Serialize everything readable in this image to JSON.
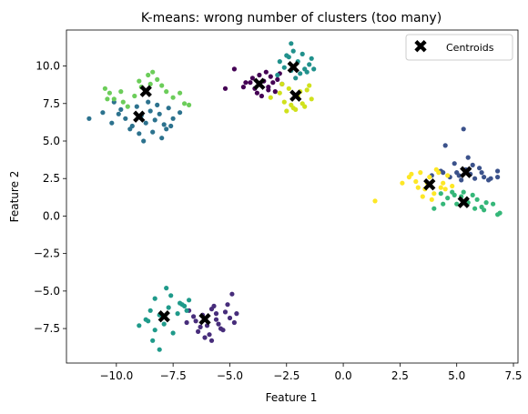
{
  "chart_data": {
    "type": "scatter",
    "title": "K-means: wrong number of clusters (too many)",
    "xlabel": "Feature 1",
    "ylabel": "Feature 2",
    "xlim": [
      -12.2,
      7.7
    ],
    "ylim": [
      -9.8,
      12.4
    ],
    "grid": false,
    "legend_placement": "upper-right",
    "x_ticks": [
      {
        "value": -10.0,
        "label": "−10.0"
      },
      {
        "value": -7.5,
        "label": "−7.5"
      },
      {
        "value": -5.0,
        "label": "−5.0"
      },
      {
        "value": -2.5,
        "label": "−2.5"
      },
      {
        "value": 0.0,
        "label": "0.0"
      },
      {
        "value": 2.5,
        "label": "2.5"
      },
      {
        "value": 5.0,
        "label": "5.0"
      },
      {
        "value": 7.5,
        "label": "7.5"
      }
    ],
    "y_ticks": [
      {
        "value": -7.5,
        "label": "−7.5"
      },
      {
        "value": -5.0,
        "label": "−5.0"
      },
      {
        "value": -2.5,
        "label": "−2.5"
      },
      {
        "value": 0.0,
        "label": "0.0"
      },
      {
        "value": 2.5,
        "label": "2.5"
      },
      {
        "value": 5.0,
        "label": "5.0"
      },
      {
        "value": 7.5,
        "label": "7.5"
      },
      {
        "value": 10.0,
        "label": "10.0"
      }
    ],
    "clusters": [
      {
        "color": "#440154",
        "points": [
          [
            -4.8,
            9.8
          ],
          [
            -4.3,
            8.9
          ],
          [
            -4.0,
            9.2
          ],
          [
            -3.9,
            8.5
          ],
          [
            -3.7,
            9.4
          ],
          [
            -3.5,
            9.0
          ],
          [
            -3.3,
            8.6
          ],
          [
            -3.2,
            9.3
          ],
          [
            -3.0,
            8.3
          ],
          [
            -2.9,
            9.1
          ],
          [
            -2.7,
            8.8
          ],
          [
            -3.8,
            8.2
          ],
          [
            -4.4,
            8.6
          ],
          [
            -3.4,
            9.6
          ],
          [
            -3.1,
            8.9
          ],
          [
            -5.2,
            8.5
          ],
          [
            -3.6,
            8.0
          ],
          [
            -2.8,
            9.5
          ],
          [
            -3.3,
            8.4
          ],
          [
            -4.1,
            8.9
          ]
        ]
      },
      {
        "color": "#472d7b",
        "points": [
          [
            -6.8,
            -6.3
          ],
          [
            -6.5,
            -7.0
          ],
          [
            -6.2,
            -6.6
          ],
          [
            -6.0,
            -7.3
          ],
          [
            -5.8,
            -6.2
          ],
          [
            -5.6,
            -6.9
          ],
          [
            -5.4,
            -7.5
          ],
          [
            -5.2,
            -6.4
          ],
          [
            -5.0,
            -6.8
          ],
          [
            -4.8,
            -7.1
          ],
          [
            -6.4,
            -7.7
          ],
          [
            -5.9,
            -7.9
          ],
          [
            -5.5,
            -7.2
          ],
          [
            -6.6,
            -6.7
          ],
          [
            -5.1,
            -5.9
          ],
          [
            -4.9,
            -5.2
          ],
          [
            -5.7,
            -6.0
          ],
          [
            -6.1,
            -8.1
          ],
          [
            -5.3,
            -7.6
          ],
          [
            -4.7,
            -6.5
          ],
          [
            -6.3,
            -7.4
          ],
          [
            -5.8,
            -8.3
          ],
          [
            -6.9,
            -7.1
          ],
          [
            -5.6,
            -6.5
          ]
        ]
      },
      {
        "color": "#3b528b",
        "points": [
          [
            3.9,
            2.7
          ],
          [
            4.3,
            3.0
          ],
          [
            4.7,
            2.6
          ],
          [
            5.0,
            2.9
          ],
          [
            5.2,
            2.4
          ],
          [
            5.4,
            3.1
          ],
          [
            5.6,
            2.8
          ],
          [
            5.8,
            2.5
          ],
          [
            6.0,
            3.2
          ],
          [
            6.2,
            2.6
          ],
          [
            6.4,
            2.4
          ],
          [
            6.8,
            2.6
          ],
          [
            6.8,
            3.0
          ],
          [
            5.3,
            5.8
          ],
          [
            4.5,
            4.7
          ],
          [
            5.5,
            3.9
          ],
          [
            4.9,
            3.5
          ],
          [
            5.7,
            3.4
          ],
          [
            4.4,
            2.9
          ],
          [
            6.1,
            2.9
          ],
          [
            5.1,
            2.7
          ],
          [
            6.5,
            2.5
          ]
        ]
      },
      {
        "color": "#2c728e",
        "points": [
          [
            -11.2,
            6.5
          ],
          [
            -10.6,
            6.9
          ],
          [
            -10.2,
            6.2
          ],
          [
            -9.8,
            7.1
          ],
          [
            -9.6,
            6.5
          ],
          [
            -9.3,
            6.0
          ],
          [
            -9.1,
            7.3
          ],
          [
            -8.9,
            6.7
          ],
          [
            -8.7,
            6.2
          ],
          [
            -8.5,
            7.0
          ],
          [
            -8.3,
            6.4
          ],
          [
            -8.1,
            6.8
          ],
          [
            -7.9,
            6.1
          ],
          [
            -7.7,
            7.2
          ],
          [
            -7.5,
            6.5
          ],
          [
            -7.2,
            6.9
          ],
          [
            -8.8,
            5.0
          ],
          [
            -8.0,
            5.2
          ],
          [
            -9.4,
            5.8
          ],
          [
            -9.9,
            6.8
          ],
          [
            -8.6,
            7.6
          ],
          [
            -8.2,
            7.4
          ],
          [
            -7.8,
            5.8
          ],
          [
            -10.1,
            7.6
          ],
          [
            -9.0,
            5.5
          ],
          [
            -7.6,
            6.0
          ],
          [
            -8.4,
            5.6
          ]
        ]
      },
      {
        "color": "#21918c",
        "points": [
          [
            -2.6,
            9.9
          ],
          [
            -2.4,
            10.6
          ],
          [
            -2.2,
            11.0
          ],
          [
            -2.0,
            10.3
          ],
          [
            -1.8,
            10.8
          ],
          [
            -1.6,
            9.6
          ],
          [
            -1.5,
            10.1
          ],
          [
            -1.3,
            9.8
          ],
          [
            -2.8,
            10.3
          ],
          [
            -2.3,
            11.5
          ],
          [
            -1.9,
            9.5
          ],
          [
            -2.1,
            9.2
          ],
          [
            -1.7,
            9.8
          ],
          [
            -2.5,
            10.7
          ],
          [
            -2.9,
            9.4
          ],
          [
            -1.4,
            10.5
          ],
          [
            -2.3,
            9.7
          ]
        ]
      },
      {
        "color": "#1f9a8a",
        "points": [
          [
            -9.0,
            -7.3
          ],
          [
            -8.7,
            -6.9
          ],
          [
            -8.5,
            -6.3
          ],
          [
            -8.3,
            -7.6
          ],
          [
            -8.1,
            -6.6
          ],
          [
            -7.9,
            -7.2
          ],
          [
            -7.7,
            -6.1
          ],
          [
            -7.5,
            -7.8
          ],
          [
            -7.3,
            -6.5
          ],
          [
            -7.1,
            -5.9
          ],
          [
            -6.9,
            -6.3
          ],
          [
            -7.6,
            -5.3
          ],
          [
            -7.8,
            -4.8
          ],
          [
            -8.3,
            -5.5
          ],
          [
            -8.1,
            -8.9
          ],
          [
            -8.4,
            -8.3
          ],
          [
            -6.8,
            -5.6
          ],
          [
            -7.0,
            -6.0
          ],
          [
            -8.6,
            -7.0
          ],
          [
            -7.2,
            -5.8
          ]
        ]
      },
      {
        "color": "#35b779",
        "points": [
          [
            4.3,
            1.5
          ],
          [
            4.6,
            1.2
          ],
          [
            4.8,
            1.6
          ],
          [
            5.0,
            0.8
          ],
          [
            5.2,
            1.3
          ],
          [
            5.5,
            0.9
          ],
          [
            5.7,
            1.4
          ],
          [
            5.9,
            1.1
          ],
          [
            6.1,
            0.6
          ],
          [
            6.3,
            0.9
          ],
          [
            6.6,
            0.8
          ],
          [
            6.8,
            0.1
          ],
          [
            6.9,
            0.2
          ],
          [
            4.0,
            0.5
          ],
          [
            4.4,
            0.8
          ],
          [
            5.8,
            0.5
          ],
          [
            6.2,
            0.4
          ],
          [
            4.9,
            1.4
          ],
          [
            5.3,
            1.6
          ]
        ]
      },
      {
        "color": "#6ccd5a",
        "points": [
          [
            -10.5,
            8.5
          ],
          [
            -10.3,
            8.2
          ],
          [
            -10.1,
            7.8
          ],
          [
            -9.7,
            7.6
          ],
          [
            -9.5,
            7.3
          ],
          [
            -9.2,
            8.0
          ],
          [
            -8.9,
            8.6
          ],
          [
            -8.6,
            9.4
          ],
          [
            -8.4,
            9.6
          ],
          [
            -8.2,
            9.1
          ],
          [
            -8.0,
            8.7
          ],
          [
            -7.8,
            8.3
          ],
          [
            -7.5,
            7.9
          ],
          [
            -7.2,
            8.2
          ],
          [
            -7.0,
            7.5
          ],
          [
            -9.0,
            9.0
          ],
          [
            -8.5,
            8.8
          ],
          [
            -9.8,
            8.3
          ],
          [
            -10.4,
            7.8
          ],
          [
            -6.8,
            7.4
          ]
        ]
      },
      {
        "color": "#d0e11c",
        "points": [
          [
            -2.8,
            8.2
          ],
          [
            -2.6,
            7.6
          ],
          [
            -2.4,
            8.5
          ],
          [
            -2.2,
            7.2
          ],
          [
            -2.0,
            8.0
          ],
          [
            -1.8,
            7.5
          ],
          [
            -1.6,
            8.4
          ],
          [
            -1.4,
            7.8
          ],
          [
            -2.5,
            7.0
          ],
          [
            -2.1,
            7.1
          ],
          [
            -1.9,
            8.3
          ],
          [
            -1.5,
            8.7
          ],
          [
            -3.2,
            7.9
          ],
          [
            -2.7,
            8.8
          ],
          [
            -2.3,
            7.4
          ],
          [
            -1.7,
            7.3
          ]
        ]
      },
      {
        "color": "#fde725",
        "points": [
          [
            1.4,
            1.0
          ],
          [
            2.6,
            2.2
          ],
          [
            3.0,
            2.8
          ],
          [
            3.2,
            2.3
          ],
          [
            3.4,
            2.9
          ],
          [
            3.6,
            1.8
          ],
          [
            3.8,
            2.6
          ],
          [
            4.0,
            1.5
          ],
          [
            4.2,
            2.9
          ],
          [
            4.4,
            2.2
          ],
          [
            4.6,
            2.7
          ],
          [
            4.8,
            2.0
          ],
          [
            3.5,
            1.3
          ],
          [
            3.9,
            1.1
          ],
          [
            4.1,
            3.1
          ],
          [
            3.3,
            1.9
          ],
          [
            4.5,
            1.8
          ],
          [
            3.7,
            2.2
          ],
          [
            4.3,
            1.9
          ],
          [
            2.9,
            2.6
          ]
        ]
      }
    ],
    "centroids": {
      "name": "Centroids",
      "color": "#ff0000",
      "points": [
        [
          -3.7,
          8.8
        ],
        [
          -2.2,
          9.9
        ],
        [
          -2.1,
          8.0
        ],
        [
          -8.7,
          8.3
        ],
        [
          -9.0,
          6.6
        ],
        [
          -7.9,
          -6.7
        ],
        [
          -6.1,
          -6.9
        ],
        [
          3.8,
          2.1
        ],
        [
          5.4,
          2.9
        ],
        [
          5.3,
          0.9
        ]
      ]
    }
  }
}
